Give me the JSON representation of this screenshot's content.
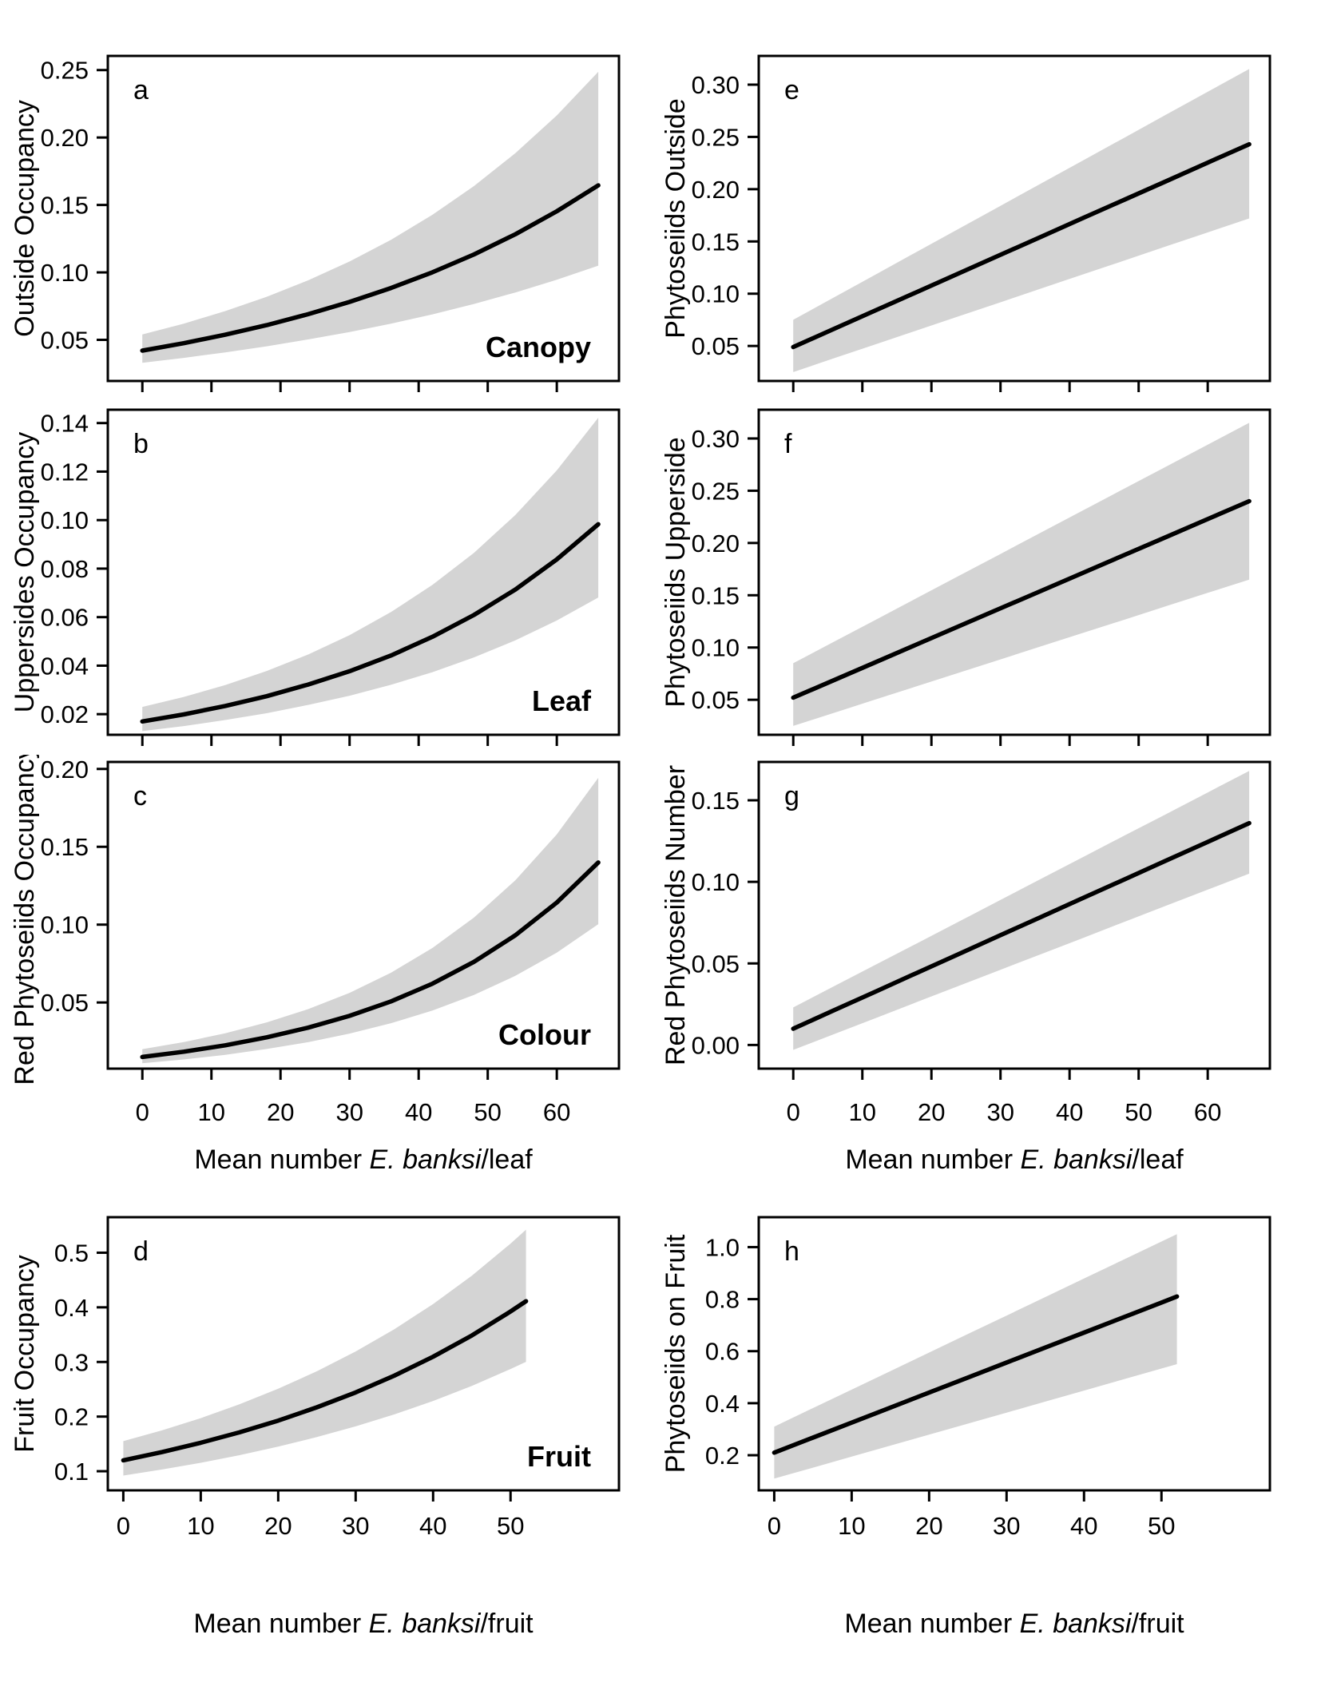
{
  "figure": {
    "background": "#ffffff",
    "band_color": "#d4d4d4",
    "line_color": "#000000",
    "axis_color": "#000000"
  },
  "chart_data": [
    {
      "panel": "a",
      "type": "area",
      "ylabel": "Outside Occupancy",
      "corner_label": "Canopy",
      "show_xtick_labels": false,
      "xlabel": null,
      "xlim": [
        -5,
        69
      ],
      "ylim": [
        0.0195,
        0.2605
      ],
      "xtick_values": [
        0,
        10,
        20,
        30,
        40,
        50,
        60
      ],
      "xtick_labels": [
        "0",
        "10",
        "20",
        "30",
        "40",
        "50",
        "60"
      ],
      "ytick_values": [
        0.05,
        0.1,
        0.15,
        0.2,
        0.25
      ],
      "ytick_labels": [
        "0.05",
        "0.10",
        "0.15",
        "0.20",
        "0.25"
      ],
      "x": [
        0,
        6,
        12,
        18,
        24,
        30,
        36,
        42,
        48,
        54,
        60,
        66
      ],
      "y": [
        0.042,
        0.0475,
        0.0538,
        0.0609,
        0.069,
        0.0781,
        0.0884,
        0.1001,
        0.1133,
        0.1283,
        0.1453,
        0.1645
      ],
      "lo": [
        0.033,
        0.0366,
        0.0407,
        0.0452,
        0.0503,
        0.0558,
        0.062,
        0.0689,
        0.0766,
        0.0851,
        0.0945,
        0.105
      ],
      "hi": [
        0.054,
        0.062,
        0.0713,
        0.0819,
        0.0941,
        0.1081,
        0.1242,
        0.1427,
        0.164,
        0.1884,
        0.2164,
        0.2487
      ]
    },
    {
      "panel": "b",
      "type": "area",
      "ylabel": "Uppersides Occupancy",
      "corner_label": "Leaf",
      "show_xtick_labels": false,
      "xlabel": null,
      "xlim": [
        -5,
        69
      ],
      "ylim": [
        0.0115,
        0.1455
      ],
      "xtick_values": [
        0,
        10,
        20,
        30,
        40,
        50,
        60
      ],
      "xtick_labels": [
        "0",
        "10",
        "20",
        "30",
        "40",
        "50",
        "60"
      ],
      "ytick_values": [
        0.02,
        0.04,
        0.06,
        0.08,
        0.1,
        0.12,
        0.14
      ],
      "ytick_labels": [
        "0.02",
        "0.04",
        "0.06",
        "0.08",
        "0.10",
        "0.12",
        "0.14"
      ],
      "x": [
        0,
        6,
        12,
        18,
        24,
        30,
        36,
        42,
        48,
        54,
        60,
        66
      ],
      "y": [
        0.017,
        0.0199,
        0.0234,
        0.0274,
        0.0322,
        0.0377,
        0.0442,
        0.0519,
        0.0609,
        0.0714,
        0.0838,
        0.0983
      ],
      "lo": [
        0.013,
        0.0151,
        0.0176,
        0.0204,
        0.0238,
        0.0276,
        0.0321,
        0.0373,
        0.0434,
        0.0504,
        0.0586,
        0.0681
      ],
      "hi": [
        0.023,
        0.0271,
        0.032,
        0.0378,
        0.0446,
        0.0526,
        0.0621,
        0.0733,
        0.0865,
        0.1021,
        0.1205,
        0.1422
      ]
    },
    {
      "panel": "c",
      "type": "area",
      "ylabel": "Red Phytoseiids Occupancy",
      "corner_label": "Colour",
      "show_xtick_labels": true,
      "xlabel": {
        "prefix": "Mean number ",
        "italic": "E. banksi",
        "suffix": "/leaf"
      },
      "xlim": [
        -5,
        69
      ],
      "ylim": [
        0.0075,
        0.2045
      ],
      "xtick_values": [
        0,
        10,
        20,
        30,
        40,
        50,
        60
      ],
      "xtick_labels": [
        "0",
        "10",
        "20",
        "30",
        "40",
        "50",
        "60"
      ],
      "ytick_values": [
        0.05,
        0.1,
        0.15,
        0.2
      ],
      "ytick_labels": [
        "0.05",
        "0.10",
        "0.15",
        "0.20"
      ],
      "x": [
        0,
        6,
        12,
        18,
        24,
        30,
        36,
        42,
        48,
        54,
        60,
        66
      ],
      "y": [
        0.015,
        0.0184,
        0.0225,
        0.0276,
        0.0338,
        0.0414,
        0.0507,
        0.0621,
        0.0761,
        0.0932,
        0.1142,
        0.1399
      ],
      "lo": [
        0.011,
        0.0134,
        0.0164,
        0.0201,
        0.0245,
        0.03,
        0.0367,
        0.0448,
        0.0548,
        0.0671,
        0.082,
        0.1003
      ],
      "hi": [
        0.02,
        0.0246,
        0.0302,
        0.0372,
        0.0457,
        0.0562,
        0.0691,
        0.085,
        0.1045,
        0.1285,
        0.158,
        0.1943
      ]
    },
    {
      "panel": "d",
      "type": "area",
      "ylabel": "Fruit Occupancy",
      "corner_label": "Fruit",
      "show_xtick_labels": true,
      "xlabel": {
        "prefix": "Mean number ",
        "italic": "E. banksi",
        "suffix": "/fruit"
      },
      "xlim": [
        -2,
        64
      ],
      "ylim": [
        0.065,
        0.565
      ],
      "xtick_values": [
        0,
        10,
        20,
        30,
        40,
        50
      ],
      "xtick_labels": [
        "0",
        "10",
        "20",
        "30",
        "40",
        "50"
      ],
      "ytick_values": [
        0.1,
        0.2,
        0.3,
        0.4,
        0.5
      ],
      "ytick_labels": [
        "0.1",
        "0.2",
        "0.3",
        "0.4",
        "0.5"
      ],
      "x": [
        0,
        5,
        10,
        15,
        20,
        25,
        30,
        35,
        40,
        45,
        50,
        52
      ],
      "y": [
        0.12,
        0.1351,
        0.1521,
        0.1712,
        0.1927,
        0.217,
        0.2443,
        0.275,
        0.3096,
        0.3485,
        0.3924,
        0.4112
      ],
      "lo": [
        0.092,
        0.1031,
        0.1155,
        0.1294,
        0.145,
        0.1625,
        0.1821,
        0.204,
        0.2286,
        0.2562,
        0.2871,
        0.3003
      ],
      "hi": [
        0.155,
        0.1748,
        0.1972,
        0.2224,
        0.2509,
        0.283,
        0.3192,
        0.36,
        0.4061,
        0.458,
        0.5166,
        0.5422
      ]
    },
    {
      "panel": "e",
      "type": "area",
      "ylabel": "Phytoseiids Outside",
      "corner_label": null,
      "show_xtick_labels": false,
      "xlabel": null,
      "xlim": [
        -5,
        69
      ],
      "ylim": [
        0.0165,
        0.3275
      ],
      "xtick_values": [
        0,
        10,
        20,
        30,
        40,
        50,
        60
      ],
      "xtick_labels": [
        "0",
        "10",
        "20",
        "30",
        "40",
        "50",
        "60"
      ],
      "ytick_values": [
        0.05,
        0.1,
        0.15,
        0.2,
        0.25,
        0.3
      ],
      "ytick_labels": [
        "0.05",
        "0.10",
        "0.15",
        "0.20",
        "0.25",
        "0.30"
      ],
      "x": [
        0,
        6,
        12,
        18,
        24,
        30,
        36,
        42,
        48,
        54,
        60,
        66
      ],
      "y": [
        0.049,
        0.0666,
        0.0843,
        0.1019,
        0.1196,
        0.1372,
        0.1548,
        0.1725,
        0.1901,
        0.2077,
        0.2254,
        0.243
      ],
      "lo": [
        0.025,
        0.0384,
        0.0517,
        0.0651,
        0.0785,
        0.0918,
        0.1052,
        0.1186,
        0.1319,
        0.1453,
        0.1586,
        0.172
      ],
      "hi": [
        0.075,
        0.0968,
        0.1186,
        0.1405,
        0.1623,
        0.1841,
        0.2059,
        0.2277,
        0.2495,
        0.2714,
        0.2932,
        0.315
      ]
    },
    {
      "panel": "f",
      "type": "area",
      "ylabel": "Phytoseiids Upperside",
      "corner_label": null,
      "show_xtick_labels": false,
      "xlabel": null,
      "xlim": [
        -5,
        69
      ],
      "ylim": [
        0.0165,
        0.3275
      ],
      "xtick_values": [
        0,
        10,
        20,
        30,
        40,
        50,
        60
      ],
      "xtick_labels": [
        "0",
        "10",
        "20",
        "30",
        "40",
        "50",
        "60"
      ],
      "ytick_values": [
        0.05,
        0.1,
        0.15,
        0.2,
        0.25,
        0.3
      ],
      "ytick_labels": [
        "0.05",
        "0.10",
        "0.15",
        "0.20",
        "0.25",
        "0.30"
      ],
      "x": [
        0,
        6,
        12,
        18,
        24,
        30,
        36,
        42,
        48,
        54,
        60,
        66
      ],
      "y": [
        0.052,
        0.0691,
        0.0862,
        0.1033,
        0.1204,
        0.1375,
        0.1545,
        0.1716,
        0.1887,
        0.2058,
        0.2229,
        0.24
      ],
      "lo": [
        0.025,
        0.0377,
        0.0505,
        0.0632,
        0.0759,
        0.0886,
        0.1014,
        0.1141,
        0.1268,
        0.1396,
        0.1523,
        0.165
      ],
      "hi": [
        0.085,
        0.1059,
        0.1268,
        0.1477,
        0.1686,
        0.1895,
        0.2105,
        0.2314,
        0.2523,
        0.2732,
        0.2941,
        0.315
      ]
    },
    {
      "panel": "g",
      "type": "area",
      "ylabel": "Red Phytoseiids Number",
      "corner_label": null,
      "show_xtick_labels": true,
      "xlabel": {
        "prefix": "Mean number ",
        "italic": "E. banksi",
        "suffix": "/leaf"
      },
      "xlim": [
        -5,
        69
      ],
      "ylim": [
        -0.0145,
        0.1735
      ],
      "xtick_values": [
        0,
        10,
        20,
        30,
        40,
        50,
        60
      ],
      "xtick_labels": [
        "0",
        "10",
        "20",
        "30",
        "40",
        "50",
        "60"
      ],
      "ytick_values": [
        0.0,
        0.05,
        0.1,
        0.15
      ],
      "ytick_labels": [
        "0.00",
        "0.05",
        "0.10",
        "0.15"
      ],
      "x": [
        0,
        6,
        12,
        18,
        24,
        30,
        36,
        42,
        48,
        54,
        60,
        66
      ],
      "y": [
        0.01,
        0.0215,
        0.0329,
        0.0444,
        0.0558,
        0.0673,
        0.0787,
        0.0902,
        0.1016,
        0.1131,
        0.1245,
        0.136
      ],
      "lo": [
        -0.003,
        0.0068,
        0.0166,
        0.0265,
        0.0363,
        0.0461,
        0.0559,
        0.0657,
        0.0756,
        0.0854,
        0.0952,
        0.105
      ],
      "hi": [
        0.023,
        0.0362,
        0.0494,
        0.0625,
        0.0757,
        0.0889,
        0.1021,
        0.1153,
        0.1285,
        0.1416,
        0.1548,
        0.168
      ]
    },
    {
      "panel": "h",
      "type": "area",
      "ylabel": "Phytoseiids on Fruit",
      "corner_label": null,
      "show_xtick_labels": true,
      "xlabel": {
        "prefix": "Mean number ",
        "italic": "E. banksi",
        "suffix": "/fruit"
      },
      "xlim": [
        -2,
        64
      ],
      "ylim": [
        0.065,
        1.115
      ],
      "xtick_values": [
        0,
        10,
        20,
        30,
        40,
        50
      ],
      "xtick_labels": [
        "0",
        "10",
        "20",
        "30",
        "40",
        "50"
      ],
      "ytick_values": [
        0.2,
        0.4,
        0.6,
        0.8,
        1.0
      ],
      "ytick_labels": [
        "0.2",
        "0.4",
        "0.6",
        "0.8",
        "1.0"
      ],
      "x": [
        0,
        5,
        10,
        15,
        20,
        25,
        30,
        35,
        40,
        45,
        50,
        52
      ],
      "y": [
        0.21,
        0.2677,
        0.3254,
        0.3831,
        0.4408,
        0.4985,
        0.5562,
        0.6138,
        0.6715,
        0.7292,
        0.7869,
        0.81
      ],
      "lo": [
        0.11,
        0.1523,
        0.1946,
        0.2369,
        0.2792,
        0.3215,
        0.3638,
        0.4062,
        0.4485,
        0.4908,
        0.5331,
        0.55
      ],
      "hi": [
        0.31,
        0.3812,
        0.4523,
        0.5235,
        0.5946,
        0.6658,
        0.7369,
        0.8081,
        0.8792,
        0.9504,
        1.0215,
        1.05
      ]
    }
  ]
}
